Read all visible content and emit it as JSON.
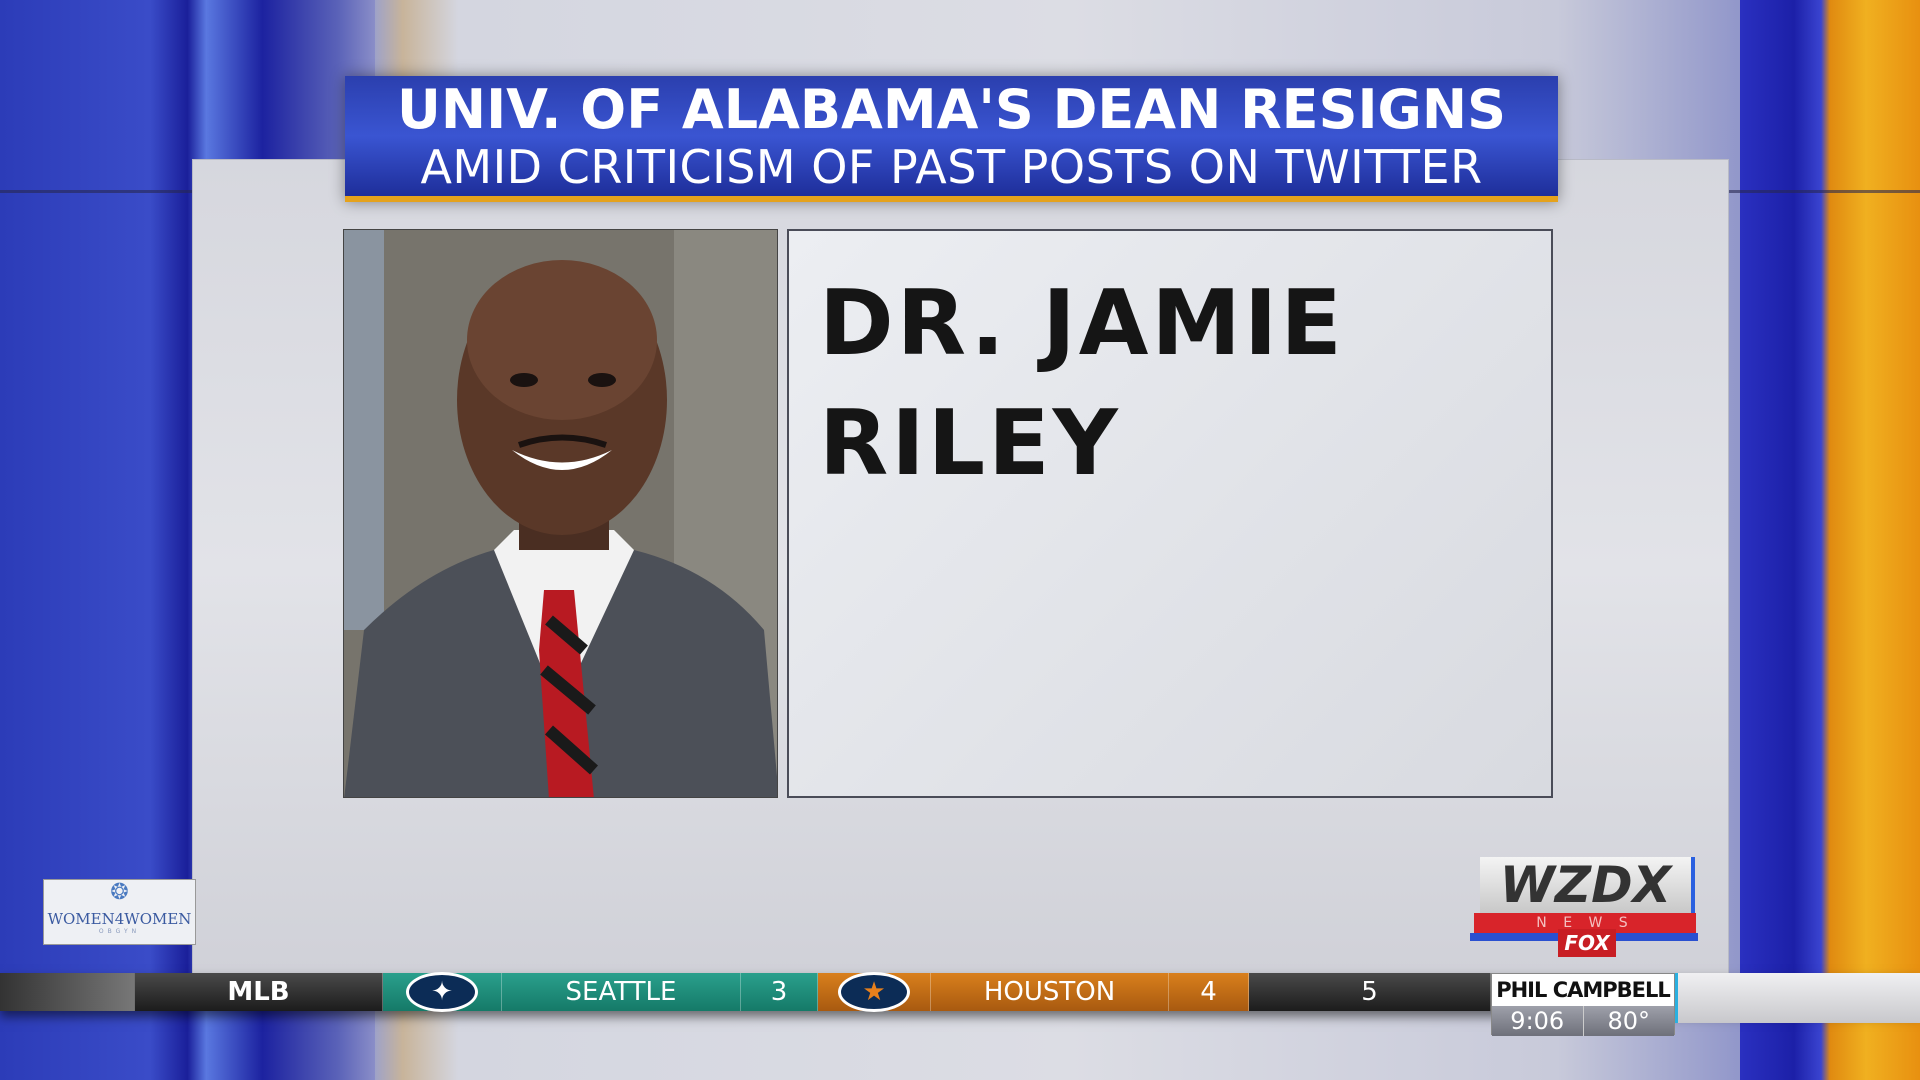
{
  "headline": {
    "line1": "UNIV. OF ALABAMA'S DEAN RESIGNS",
    "line2": "AMID CRITICISM OF PAST POSTS ON TWITTER"
  },
  "name_card": {
    "line1": "DR. JAMIE",
    "line2": "RILEY"
  },
  "sponsor_logo": {
    "text": "WOMEN4WOMEN",
    "sub": "OBGYN"
  },
  "station_logo": {
    "call": "WZDX",
    "news": "N E W S",
    "network": "FOX"
  },
  "ticker": {
    "league": "MLB",
    "away_team": "SEATTLE",
    "away_score": "3",
    "home_team": "HOUSTON",
    "home_score": "4",
    "inning": "5",
    "away_icon": "mariners-compass-icon",
    "home_icon": "astros-star-icon"
  },
  "weather": {
    "location": "PHIL CAMPBELL",
    "time": "9:06",
    "temp": "80°"
  },
  "colors": {
    "headline_blue": "#2b3fae",
    "accent_orange": "#e5a21c",
    "seattle_teal": "#1d8c78",
    "houston_orange": "#c8701a"
  }
}
